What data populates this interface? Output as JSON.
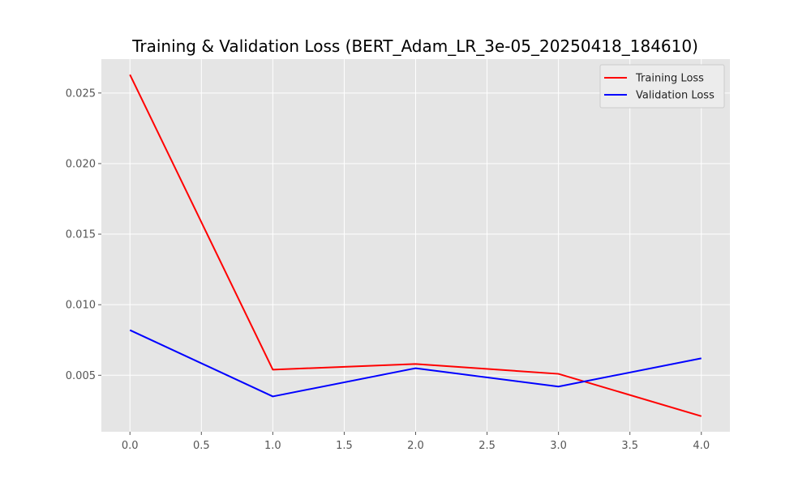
{
  "chart_data": {
    "type": "line",
    "title": "Training & Validation Loss (BERT_Adam_LR_3e-05_20250418_184610)",
    "xlabel": "",
    "ylabel": "",
    "x": [
      0,
      1,
      2,
      3,
      4
    ],
    "xlim": [
      -0.2,
      4.2
    ],
    "ylim": [
      0.001,
      0.0274
    ],
    "xticks": [
      0.0,
      0.5,
      1.0,
      1.5,
      2.0,
      2.5,
      3.0,
      3.5,
      4.0
    ],
    "xtick_labels": [
      "0.0",
      "0.5",
      "1.0",
      "1.5",
      "2.0",
      "2.5",
      "3.0",
      "3.5",
      "4.0"
    ],
    "yticks": [
      0.005,
      0.01,
      0.015,
      0.02,
      0.025
    ],
    "ytick_labels": [
      "0.005",
      "0.010",
      "0.015",
      "0.020",
      "0.025"
    ],
    "grid": true,
    "legend_position": "top-right",
    "series": [
      {
        "name": "Training Loss",
        "color": "#ff0000",
        "values": [
          0.0263,
          0.0054,
          0.0058,
          0.0051,
          0.0021
        ]
      },
      {
        "name": "Validation Loss",
        "color": "#0000ff",
        "values": [
          0.0082,
          0.0035,
          0.0055,
          0.0042,
          0.0062
        ]
      }
    ]
  }
}
